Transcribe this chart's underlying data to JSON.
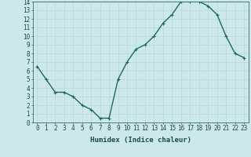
{
  "x": [
    0,
    1,
    2,
    3,
    4,
    5,
    6,
    7,
    8,
    9,
    10,
    11,
    12,
    13,
    14,
    15,
    16,
    17,
    18,
    19,
    20,
    21,
    22,
    23
  ],
  "y": [
    6.5,
    5.0,
    3.5,
    3.5,
    3.0,
    2.0,
    1.5,
    0.5,
    0.5,
    5.0,
    7.0,
    8.5,
    9.0,
    10.0,
    11.5,
    12.5,
    14.0,
    14.0,
    14.0,
    13.5,
    12.5,
    10.0,
    8.0,
    7.5
  ],
  "line_color": "#1a6b5a",
  "marker": "+",
  "marker_size": 3,
  "background_color": "#cce8e8",
  "grid_color": "#b8d8d8",
  "xlabel": "Humidex (Indice chaleur)",
  "xlim": [
    -0.5,
    23.5
  ],
  "ylim": [
    0,
    14
  ],
  "yticks": [
    0,
    1,
    2,
    3,
    4,
    5,
    6,
    7,
    8,
    9,
    10,
    11,
    12,
    13,
    14
  ],
  "xticks": [
    0,
    1,
    2,
    3,
    4,
    5,
    6,
    7,
    8,
    9,
    10,
    11,
    12,
    13,
    14,
    15,
    16,
    17,
    18,
    19,
    20,
    21,
    22,
    23
  ],
  "tick_label_color": "#1a4a4a",
  "axis_color": "#3a6a6a",
  "xlabel_fontsize": 6.5,
  "tick_fontsize": 5.5,
  "linewidth": 1.0,
  "markeredgewidth": 0.8
}
